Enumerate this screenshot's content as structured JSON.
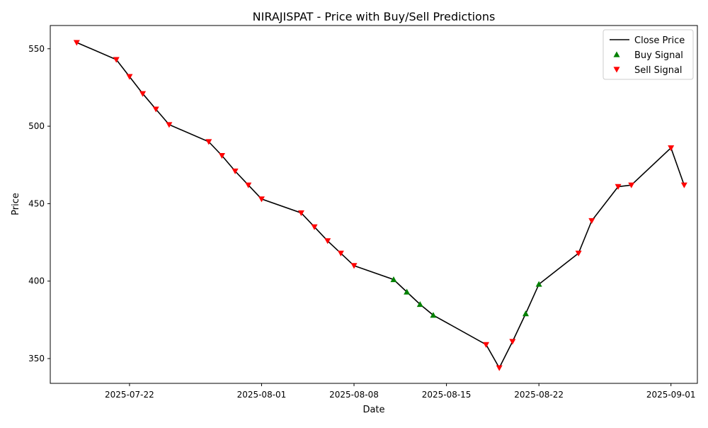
{
  "chart_data": {
    "type": "line",
    "title": "NIRAJISPAT - Price with Buy/Sell Predictions",
    "xlabel": "Date",
    "ylabel": "Price",
    "xlim": [
      "2025-07-16",
      "2025-09-03"
    ],
    "ylim": [
      334,
      565
    ],
    "x_ticks": [
      "2025-07-22",
      "2025-08-01",
      "2025-08-08",
      "2025-08-15",
      "2025-08-22",
      "2025-09-01"
    ],
    "y_ticks": [
      350,
      400,
      450,
      500,
      550
    ],
    "grid": false,
    "legend_position": "upper right",
    "legend": [
      "Close Price",
      "Buy Signal",
      "Sell Signal"
    ],
    "colors": {
      "line": "#000000",
      "buy": "#008000",
      "sell": "#ff0000"
    },
    "series": [
      {
        "name": "Close Price",
        "x": [
          "2025-07-18",
          "2025-07-21",
          "2025-07-22",
          "2025-07-23",
          "2025-07-24",
          "2025-07-25",
          "2025-07-28",
          "2025-07-29",
          "2025-07-30",
          "2025-07-31",
          "2025-08-01",
          "2025-08-04",
          "2025-08-05",
          "2025-08-06",
          "2025-08-07",
          "2025-08-08",
          "2025-08-11",
          "2025-08-12",
          "2025-08-13",
          "2025-08-14",
          "2025-08-18",
          "2025-08-19",
          "2025-08-20",
          "2025-08-21",
          "2025-08-22",
          "2025-08-25",
          "2025-08-26",
          "2025-08-28",
          "2025-08-29",
          "2025-09-01",
          "2025-09-02"
        ],
        "values": [
          554,
          543,
          532,
          521,
          511,
          501,
          490,
          481,
          471,
          462,
          453,
          444,
          435,
          426,
          418,
          410,
          401,
          393,
          385,
          378,
          359,
          344,
          361,
          379,
          398,
          418,
          439,
          461,
          462,
          486,
          462
        ]
      },
      {
        "name": "Buy Signal",
        "x": [
          "2025-08-11",
          "2025-08-12",
          "2025-08-13",
          "2025-08-14",
          "2025-08-21",
          "2025-08-22"
        ],
        "values": [
          401,
          393,
          385,
          378,
          379,
          398
        ]
      },
      {
        "name": "Sell Signal",
        "x": [
          "2025-07-18",
          "2025-07-21",
          "2025-07-22",
          "2025-07-23",
          "2025-07-24",
          "2025-07-25",
          "2025-07-28",
          "2025-07-29",
          "2025-07-30",
          "2025-07-31",
          "2025-08-01",
          "2025-08-04",
          "2025-08-05",
          "2025-08-06",
          "2025-08-07",
          "2025-08-08",
          "2025-08-18",
          "2025-08-19",
          "2025-08-20",
          "2025-08-25",
          "2025-08-26",
          "2025-08-28",
          "2025-08-29",
          "2025-09-01",
          "2025-09-02"
        ],
        "values": [
          554,
          543,
          532,
          521,
          511,
          501,
          490,
          481,
          471,
          462,
          453,
          444,
          435,
          426,
          418,
          410,
          359,
          344,
          361,
          418,
          439,
          461,
          462,
          486,
          462
        ]
      }
    ]
  }
}
